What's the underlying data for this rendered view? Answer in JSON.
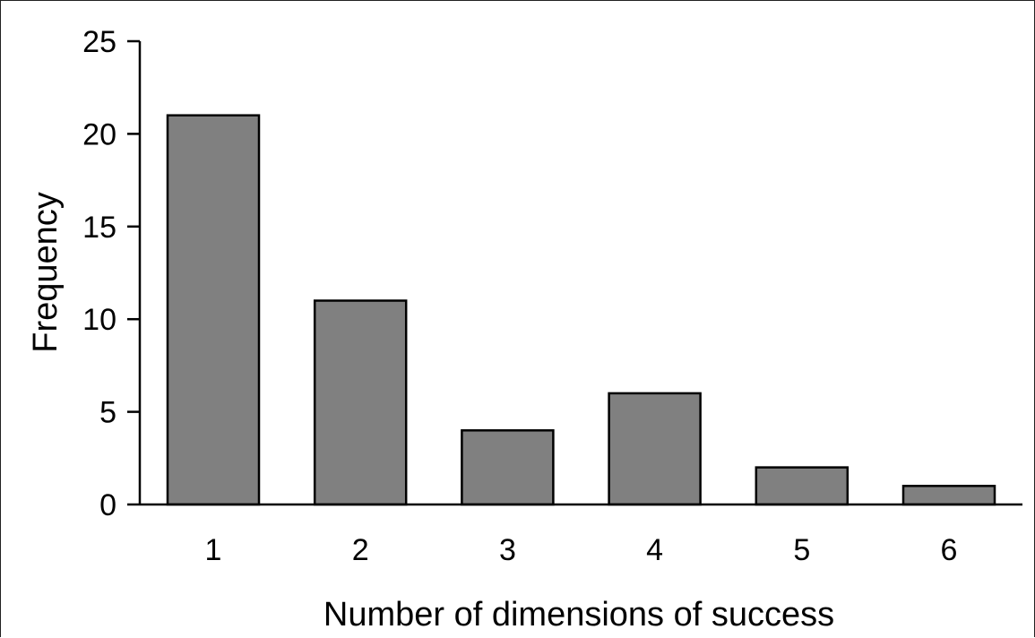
{
  "chart_data": {
    "type": "bar",
    "categories": [
      "1",
      "2",
      "3",
      "4",
      "5",
      "6"
    ],
    "values": [
      21,
      11,
      4,
      6,
      2,
      1
    ],
    "title": "",
    "xlabel": "Number of dimensions of success",
    "ylabel": "Frequency",
    "ylim": [
      0,
      25
    ],
    "yticks": [
      0,
      5,
      10,
      15,
      20,
      25
    ],
    "grid": false,
    "legend": "none",
    "bar_color": "#808080",
    "edge_color": "#000000"
  }
}
